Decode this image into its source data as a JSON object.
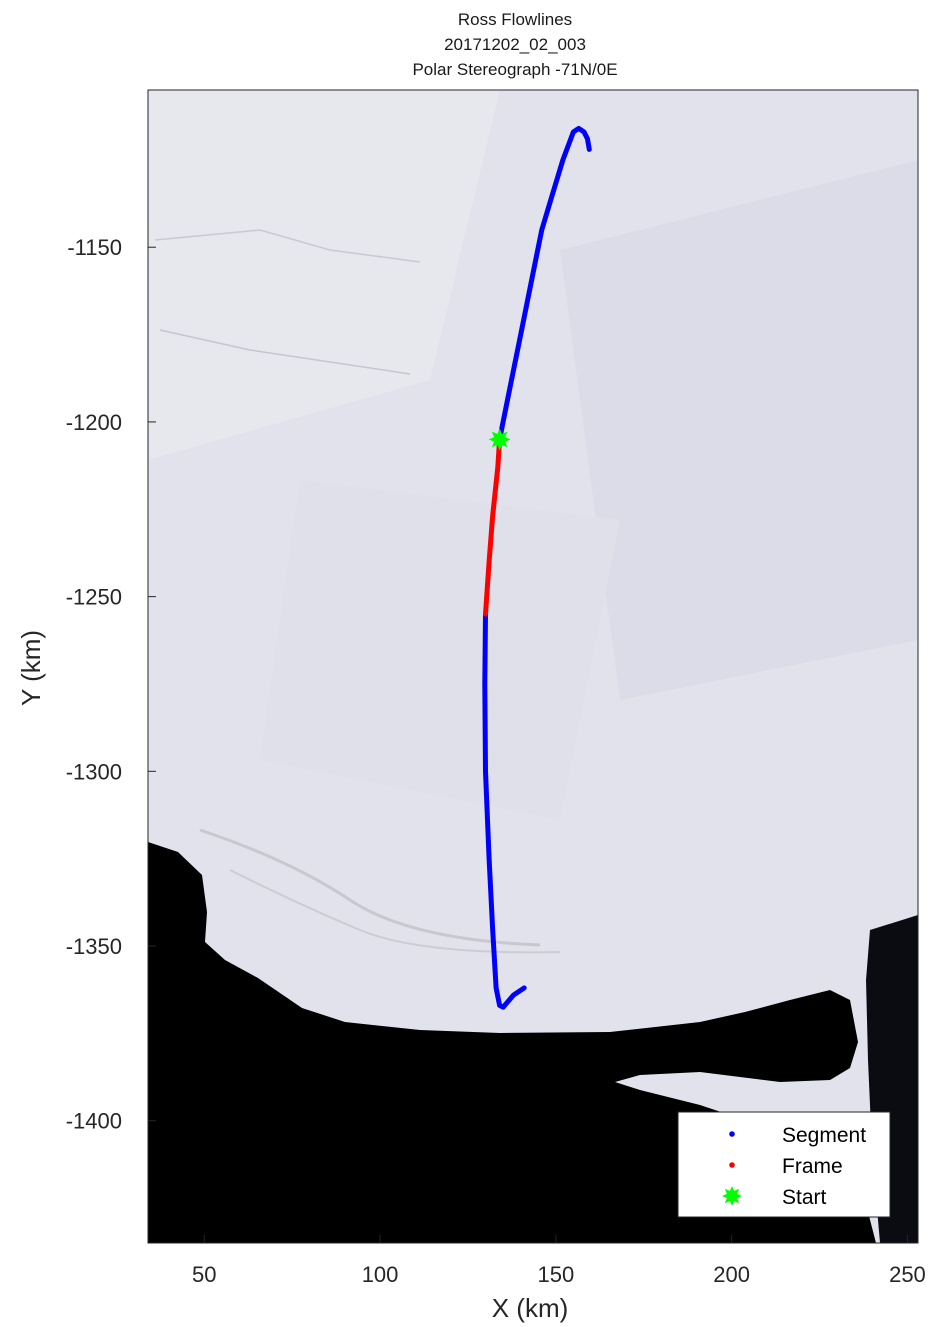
{
  "chart_data": {
    "type": "line",
    "title": [
      "Ross Flowlines",
      "20171202_02_003",
      "Polar Stereograph -71N/0E"
    ],
    "xlabel": "X (km)",
    "ylabel": "Y (km)",
    "xlim": [
      34,
      253
    ],
    "ylim": [
      -1435,
      -1105
    ],
    "xticks": [
      50,
      100,
      150,
      200,
      250
    ],
    "yticks": [
      -1150,
      -1200,
      -1250,
      -1300,
      -1350,
      -1400
    ],
    "grid": false,
    "background": "satellite image (ice shelf, open water at bottom)",
    "legend_position": "bottom-right",
    "series": [
      {
        "name": "Segment",
        "color": "#0000ff",
        "points": [
          [
            141,
            -1362
          ],
          [
            138,
            -1364
          ],
          [
            135,
            -1367.5
          ],
          [
            134,
            -1367
          ],
          [
            133,
            -1362
          ],
          [
            132,
            -1345
          ],
          [
            131,
            -1325
          ],
          [
            130,
            -1300
          ],
          [
            129.8,
            -1275
          ],
          [
            130,
            -1255
          ]
        ]
      },
      {
        "name": "Frame",
        "color": "#ff0000",
        "points": [
          [
            130,
            -1255
          ],
          [
            131,
            -1240
          ],
          [
            132,
            -1227
          ],
          [
            133.5,
            -1213
          ],
          [
            134,
            -1205
          ]
        ]
      },
      {
        "name": "Segment",
        "color": "#0000ff",
        "points": [
          [
            134,
            -1205
          ],
          [
            135,
            -1200
          ],
          [
            137,
            -1190
          ],
          [
            140,
            -1175
          ],
          [
            143,
            -1160
          ],
          [
            146,
            -1145
          ],
          [
            149,
            -1135
          ],
          [
            152,
            -1125
          ],
          [
            155,
            -1117
          ],
          [
            156.5,
            -1116
          ],
          [
            158,
            -1117
          ],
          [
            159,
            -1119
          ],
          [
            159.5,
            -1122
          ]
        ]
      },
      {
        "name": "Start",
        "color": "#00ff00",
        "marker": "star",
        "points": [
          [
            134,
            -1205
          ]
        ]
      }
    ],
    "legend": [
      {
        "label": "Segment",
        "color": "#0000ff",
        "marker": "dot"
      },
      {
        "label": "Frame",
        "color": "#ff0000",
        "marker": "dot"
      },
      {
        "label": "Start",
        "color": "#00ff00",
        "marker": "star"
      }
    ]
  }
}
